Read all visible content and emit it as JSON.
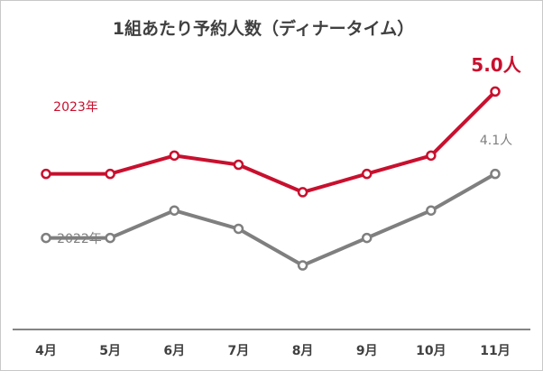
{
  "chart_data": {
    "type": "line",
    "title": "1組あたり予約人数（ディナータイム）",
    "categories": [
      "4月",
      "5月",
      "6月",
      "7月",
      "8月",
      "9月",
      "10月",
      "11月"
    ],
    "series": [
      {
        "name": "2023年",
        "color": "#c8102e",
        "values": [
          4.1,
          4.1,
          4.3,
          4.2,
          3.9,
          4.1,
          4.3,
          5.0
        ]
      },
      {
        "name": "2022年",
        "color": "#7f7f7f",
        "values": [
          3.4,
          3.4,
          3.7,
          3.5,
          3.1,
          3.4,
          3.7,
          4.1
        ]
      }
    ],
    "annotations": [
      {
        "series": 0,
        "text": "5.0人"
      },
      {
        "series": 1,
        "text": "4.1人"
      }
    ],
    "ylim": [
      2.4,
      6.0
    ],
    "grid": false,
    "legend": "inline labels"
  }
}
